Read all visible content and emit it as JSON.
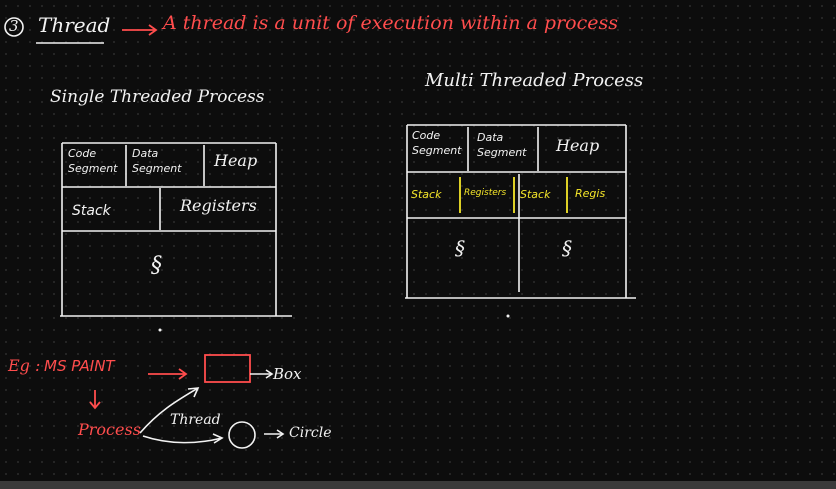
{
  "header": {
    "number": "3",
    "title": "Thread",
    "arrow": "→",
    "definition": "A thread is a unit of execution within a process"
  },
  "single": {
    "title": "Single Threaded Process",
    "code_segment": [
      "Code",
      "Segment"
    ],
    "data_segment": [
      "Data",
      "Segment"
    ],
    "heap": "Heap",
    "stack": "Stack",
    "registers": "Registers",
    "squiggle": "§"
  },
  "multi": {
    "title": "Multi Threaded Process",
    "code_segment": [
      "Code",
      "Segment"
    ],
    "data_segment": [
      "Data",
      "Segment"
    ],
    "heap": "Heap",
    "stack1": "Stack",
    "registers1": "Registers",
    "stack2": "Stack",
    "registers2": "Regis",
    "squiggle1": "§",
    "squiggle2": "§"
  },
  "example": {
    "eg_label": "Eg :",
    "app": "MS PAINT",
    "process": "Process",
    "thread": "Thread",
    "box_label": "Box",
    "circle_label": "Circle"
  },
  "colors": {
    "ink": "#f2f2f2",
    "red": "#ff4d4d",
    "yellow": "#f5e62a",
    "background": "#0d0d0d"
  }
}
